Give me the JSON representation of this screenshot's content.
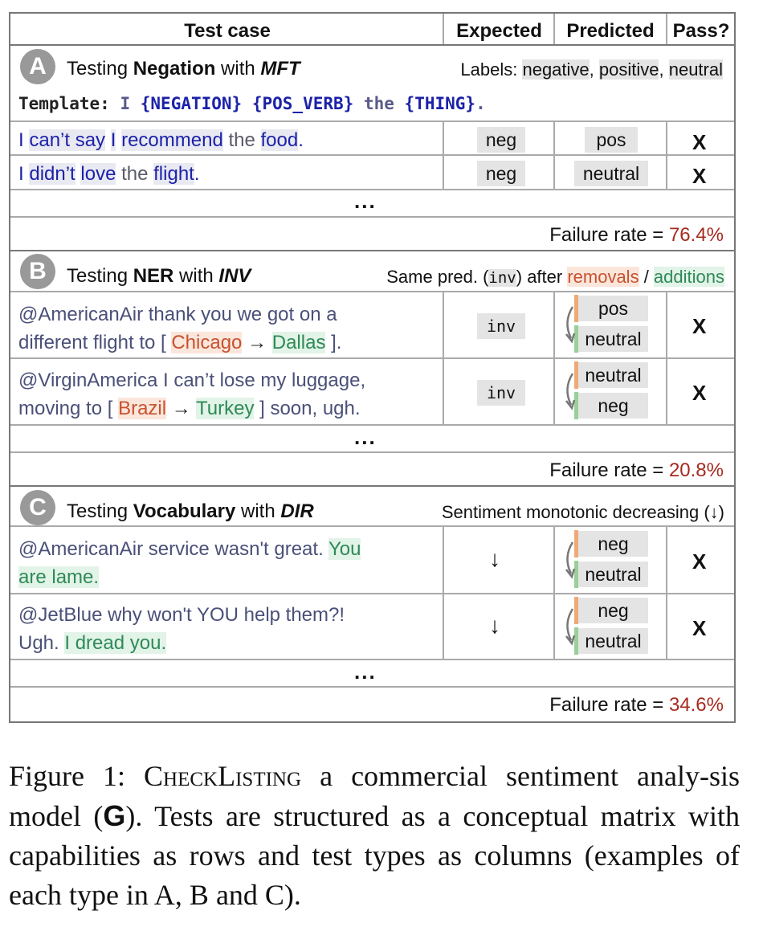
{
  "header": {
    "col_test_case": "Test case",
    "col_expected": "Expected",
    "col_predicted": "Predicted",
    "col_pass": "Pass?"
  },
  "sectionA": {
    "letter": "A",
    "title_pre": "Testing ",
    "capability": "Negation",
    "title_mid": " with ",
    "test_type": "MFT",
    "labels_prefix": "Labels: ",
    "label_neg": "negative",
    "label_pos": "positive",
    "label_neu": "neutral",
    "template_key": "Template:",
    "template_i": "I",
    "template_neg": "{NEGATION}",
    "template_verb": "{POS_VERB}",
    "template_the": "the",
    "template_thing": "{THING}",
    "template_end": ".",
    "row1": {
      "t1": "I",
      "t2": "can’t say",
      "t3": "I",
      "t4": "recommend",
      "t5": "the",
      "t6": "food",
      "t7": ".",
      "expected": "neg",
      "predicted": "pos",
      "pass": "X"
    },
    "row2": {
      "t1": "I",
      "t2": "didn’t",
      "t3": "love",
      "t4": "the",
      "t5": "flight",
      "t6": ".",
      "expected": "neg",
      "predicted": "neutral",
      "pass": "X"
    },
    "ellipsis": "...",
    "failure_label": "Failure rate = ",
    "failure_value": "76.4%"
  },
  "sectionB": {
    "letter": "B",
    "title_pre": "Testing ",
    "capability": "NER",
    "title_mid": " with ",
    "test_type": "INV",
    "desc_pre": "Same pred. (",
    "desc_code": "inv",
    "desc_mid": ") after ",
    "removals": "removals",
    "slash": " / ",
    "additions": "additions",
    "row1": {
      "line1": "@AmericanAir thank you we got on a",
      "line2_pre": "different flight to [ ",
      "from": "Chicago",
      "arrow": "→",
      "to": "Dallas",
      "line2_post": " ].",
      "expected": "inv",
      "pred_before": "pos",
      "pred_after": "neutral",
      "pass": "X"
    },
    "row2": {
      "line1": "@VirginAmerica I can’t lose my luggage,",
      "line2_pre": "moving to [ ",
      "from": "Brazil",
      "arrow": "→",
      "to": "Turkey",
      "line2_post": " ] soon, ugh.",
      "expected": "inv",
      "pred_before": "neutral",
      "pred_after": "neg",
      "pass": "X"
    },
    "ellipsis": "...",
    "failure_label": "Failure rate = ",
    "failure_value": "20.8%"
  },
  "sectionC": {
    "letter": "C",
    "title_pre": "Testing ",
    "capability": "Vocabulary",
    "title_mid": " with ",
    "test_type": "DIR",
    "desc": "Sentiment monotonic decreasing (↓)",
    "row1": {
      "line1_pre": "@AmericanAir service wasn't great. ",
      "line1_add": "You",
      "line2_add": "are lame.",
      "expected": "↓",
      "pred_before": "neg",
      "pred_after": "neutral",
      "pass": "X"
    },
    "row2": {
      "line1": "@JetBlue why won't YOU help them?!",
      "line2_pre": "Ugh. ",
      "line2_add": "I dread you.",
      "expected": "↓",
      "pred_before": "neg",
      "pred_after": "neutral",
      "pass": "X"
    },
    "ellipsis": "...",
    "failure_label": "Failure rate = ",
    "failure_value": "34.6%"
  },
  "caption": {
    "prefix": "Figure 1: ",
    "checklisting": "CheckListing",
    "body1": " a commercial sentiment analy-sis model (",
    "g_logo": "G",
    "body2": "). Tests are structured as a conceptual matrix with capabilities as rows and test types as columns (examples of each type in A, B and C)."
  }
}
